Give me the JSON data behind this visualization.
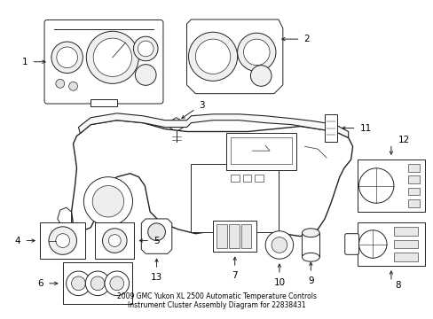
{
  "title": "2009 GMC Yukon XL 2500 Automatic Temperature Controls\nInstrument Cluster Assembly Diagram for 22838431",
  "bg_color": "#ffffff",
  "line_color": "#222222",
  "text_color": "#000000",
  "fig_width": 4.89,
  "fig_height": 3.6,
  "dpi": 100
}
